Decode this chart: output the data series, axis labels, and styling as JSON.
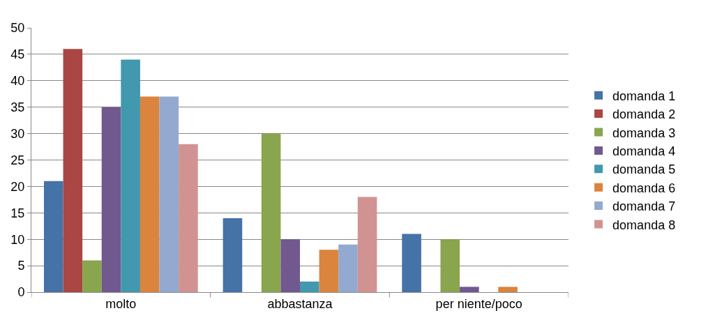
{
  "chart_data": {
    "type": "bar",
    "categories": [
      "molto",
      "abbastanza",
      "per niente/poco"
    ],
    "series": [
      {
        "name": "domanda 1",
        "color": "#4572a7",
        "values": [
          21,
          14,
          11
        ]
      },
      {
        "name": "domanda 2",
        "color": "#aa4643",
        "values": [
          46,
          0,
          0
        ]
      },
      {
        "name": "domanda 3",
        "color": "#89a54e",
        "values": [
          6,
          30,
          10
        ]
      },
      {
        "name": "domanda 4",
        "color": "#71588f",
        "values": [
          35,
          10,
          1
        ]
      },
      {
        "name": "domanda 5",
        "color": "#4198af",
        "values": [
          44,
          2,
          0
        ]
      },
      {
        "name": "domanda 6",
        "color": "#db843d",
        "values": [
          37,
          8,
          1
        ]
      },
      {
        "name": "domanda 7",
        "color": "#93a9cf",
        "values": [
          37,
          9,
          0
        ]
      },
      {
        "name": "domanda 8",
        "color": "#d19392",
        "values": [
          28,
          18,
          0
        ]
      }
    ],
    "ylim": [
      0,
      50
    ],
    "yticks": [
      0,
      5,
      10,
      15,
      20,
      25,
      30,
      35,
      40,
      45,
      50
    ],
    "grid": "y",
    "legend": "right"
  }
}
